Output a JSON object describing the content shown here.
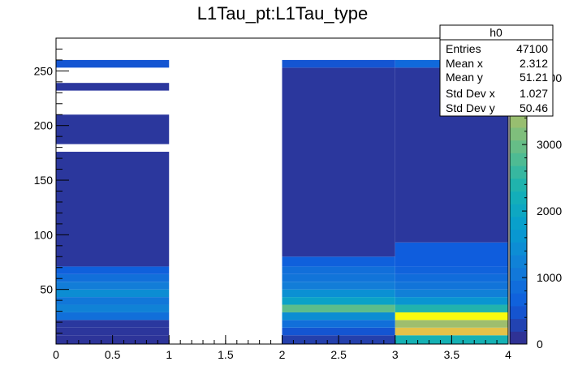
{
  "chart_data": {
    "type": "heatmap",
    "title": "L1Tau_pt:L1Tau_type",
    "xlabel": "",
    "ylabel": "",
    "xlim": [
      0,
      4
    ],
    "ylim": [
      0,
      280
    ],
    "x_ticks": [
      0,
      0.5,
      1,
      1.5,
      2,
      2.5,
      3,
      3.5,
      4
    ],
    "x_tick_labels": [
      "0",
      "0.5",
      "1",
      "1.5",
      "2",
      "2.5",
      "3",
      "3.5",
      "4"
    ],
    "y_ticks": [
      50,
      100,
      150,
      200,
      250
    ],
    "y_tick_labels": [
      "50",
      "100",
      "150",
      "200",
      "250"
    ],
    "zlim": [
      0,
      4600
    ],
    "z_ticks": [
      0,
      1000,
      2000,
      3000,
      4000
    ],
    "z_tick_labels": [
      "0",
      "1000",
      "2000",
      "3000",
      "4000"
    ],
    "colormap": "kBird",
    "x_bins": [
      [
        0,
        1
      ],
      [
        2,
        3
      ],
      [
        3,
        4
      ]
    ],
    "cells": [
      {
        "x": [
          0,
          1
        ],
        "y": [
          0,
          8
        ],
        "z": 120
      },
      {
        "x": [
          0,
          1
        ],
        "y": [
          8,
          15
        ],
        "z": 140
      },
      {
        "x": [
          0,
          1
        ],
        "y": [
          15,
          22
        ],
        "z": 160
      },
      {
        "x": [
          0,
          1
        ],
        "y": [
          22,
          29
        ],
        "z": 900
      },
      {
        "x": [
          0,
          1
        ],
        "y": [
          29,
          36
        ],
        "z": 1250
      },
      {
        "x": [
          0,
          1
        ],
        "y": [
          36,
          43
        ],
        "z": 1050
      },
      {
        "x": [
          0,
          1
        ],
        "y": [
          43,
          50
        ],
        "z": 1450
      },
      {
        "x": [
          0,
          1
        ],
        "y": [
          50,
          57
        ],
        "z": 1150
      },
      {
        "x": [
          0,
          1
        ],
        "y": [
          57,
          64
        ],
        "z": 900
      },
      {
        "x": [
          0,
          1
        ],
        "y": [
          64,
          71
        ],
        "z": 650
      },
      {
        "x": [
          0,
          1
        ],
        "y": [
          71,
          176
        ],
        "z": 150
      },
      {
        "x": [
          0,
          1
        ],
        "y": [
          183,
          210
        ],
        "z": 150
      },
      {
        "x": [
          0,
          1
        ],
        "y": [
          232,
          239
        ],
        "z": 150
      },
      {
        "x": [
          0,
          1
        ],
        "y": [
          253,
          260
        ],
        "z": 500
      },
      {
        "x": [
          2,
          3
        ],
        "y": [
          0,
          8
        ],
        "z": 250
      },
      {
        "x": [
          2,
          3
        ],
        "y": [
          8,
          15
        ],
        "z": 500
      },
      {
        "x": [
          2,
          3
        ],
        "y": [
          15,
          22
        ],
        "z": 900
      },
      {
        "x": [
          2,
          3
        ],
        "y": [
          22,
          29
        ],
        "z": 1450
      },
      {
        "x": [
          2,
          3
        ],
        "y": [
          29,
          36
        ],
        "z": 2900
      },
      {
        "x": [
          2,
          3
        ],
        "y": [
          36,
          43
        ],
        "z": 1900
      },
      {
        "x": [
          2,
          3
        ],
        "y": [
          43,
          50
        ],
        "z": 1500
      },
      {
        "x": [
          2,
          3
        ],
        "y": [
          50,
          57
        ],
        "z": 1150
      },
      {
        "x": [
          2,
          3
        ],
        "y": [
          57,
          64
        ],
        "z": 1000
      },
      {
        "x": [
          2,
          3
        ],
        "y": [
          64,
          71
        ],
        "z": 900
      },
      {
        "x": [
          2,
          3
        ],
        "y": [
          71,
          80
        ],
        "z": 650
      },
      {
        "x": [
          2,
          3
        ],
        "y": [
          80,
          253
        ],
        "z": 150
      },
      {
        "x": [
          2,
          3
        ],
        "y": [
          253,
          260
        ],
        "z": 500
      },
      {
        "x": [
          3,
          4
        ],
        "y": [
          0,
          8
        ],
        "z": 2300
      },
      {
        "x": [
          3,
          4
        ],
        "y": [
          8,
          15
        ],
        "z": 4100
      },
      {
        "x": [
          3,
          4
        ],
        "y": [
          15,
          22
        ],
        "z": 3400
      },
      {
        "x": [
          3,
          4
        ],
        "y": [
          22,
          29
        ],
        "z": 4600
      },
      {
        "x": [
          3,
          4
        ],
        "y": [
          29,
          36
        ],
        "z": 2400
      },
      {
        "x": [
          3,
          4
        ],
        "y": [
          36,
          43
        ],
        "z": 1600
      },
      {
        "x": [
          3,
          4
        ],
        "y": [
          43,
          50
        ],
        "z": 1200
      },
      {
        "x": [
          3,
          4
        ],
        "y": [
          50,
          57
        ],
        "z": 1000
      },
      {
        "x": [
          3,
          4
        ],
        "y": [
          57,
          64
        ],
        "z": 850
      },
      {
        "x": [
          3,
          4
        ],
        "y": [
          64,
          71
        ],
        "z": 700
      },
      {
        "x": [
          3,
          4
        ],
        "y": [
          71,
          93
        ],
        "z": 600
      },
      {
        "x": [
          3,
          4
        ],
        "y": [
          93,
          253
        ],
        "z": 150
      },
      {
        "x": [
          3,
          4
        ],
        "y": [
          253,
          260
        ],
        "z": 800
      }
    ],
    "stats_box": {
      "title": "h0",
      "rows": [
        {
          "label": "Entries",
          "value": "47100"
        },
        {
          "label": "Mean x",
          "value": "2.312"
        },
        {
          "label": "Mean y",
          "value": "51.21"
        },
        {
          "label": "Std Dev x",
          "value": "1.027"
        },
        {
          "label": "Std Dev y",
          "value": "50.46"
        }
      ]
    },
    "grid": false,
    "legend": "none"
  }
}
